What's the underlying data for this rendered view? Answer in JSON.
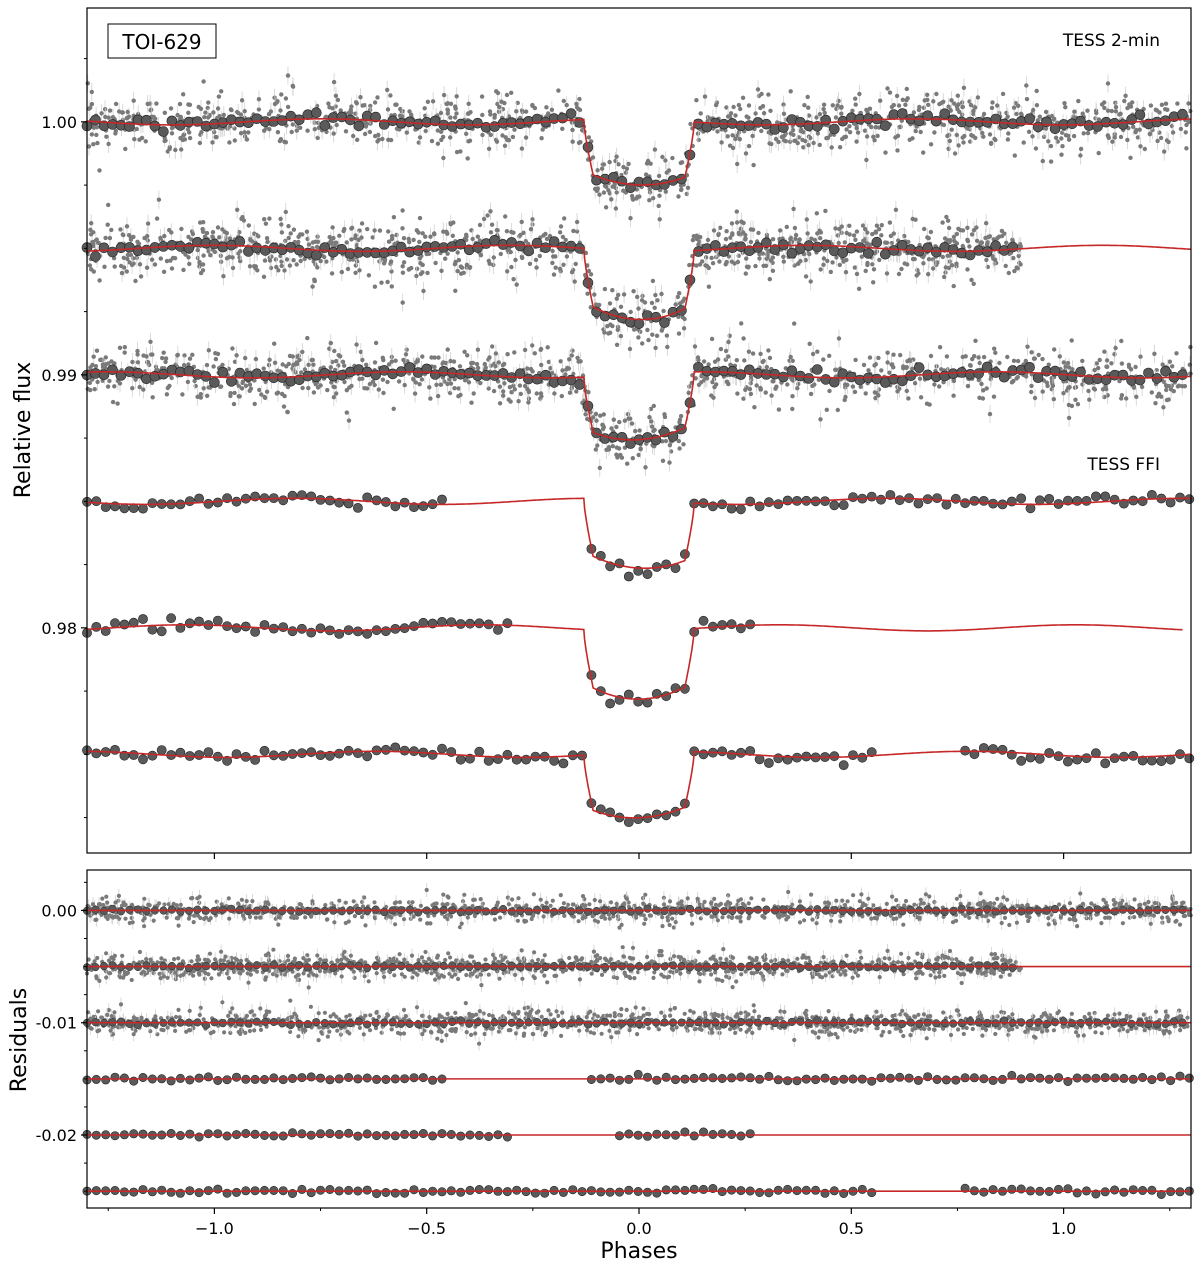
{
  "chart_data": [
    {
      "type": "scatter",
      "panel": "transit",
      "title_box": "TOI-629",
      "ylabel": "Relative flux",
      "xlabel": "",
      "xlim": [
        -1.3,
        1.3
      ],
      "ylim": [
        0.9711,
        1.0045
      ],
      "yticks": [
        0.98,
        0.99,
        1.0
      ],
      "ytick_labels": [
        "0.98",
        "0.99",
        "1.00"
      ],
      "xticks": [
        -1.0,
        -0.5,
        0.0,
        0.5,
        1.0
      ],
      "annotations": [
        "TESS 2-min",
        "TESS FFI"
      ],
      "transit": {
        "center_phase": 0.0,
        "half_width_phase": 0.13
      },
      "series": [
        {
          "group": "TESS 2-min",
          "baseline": 1.0,
          "depth": 0.0026,
          "phase_range": [
            -1.3,
            1.3
          ],
          "model_range": [
            -1.3,
            1.3
          ]
        },
        {
          "group": "TESS 2-min",
          "baseline": 0.995,
          "depth": 0.0027,
          "phase_range": [
            -1.3,
            0.9
          ],
          "model_range": [
            -1.3,
            1.3
          ]
        },
        {
          "group": "TESS 2-min",
          "baseline": 0.99,
          "depth": 0.0026,
          "phase_range": [
            -1.3,
            1.3
          ],
          "model_range": [
            -1.3,
            1.3
          ]
        },
        {
          "group": "TESS FFI",
          "baseline": 0.985,
          "depth": 0.0027,
          "phase_range": [
            -1.3,
            1.3
          ],
          "gaps": [
            [
              -0.45,
              -0.13
            ]
          ],
          "model_range": [
            -1.3,
            1.3
          ]
        },
        {
          "group": "TESS FFI",
          "baseline": 0.98,
          "depth": 0.0027,
          "phase_range": [
            -1.3,
            0.28
          ],
          "gaps": [
            [
              -0.3,
              -0.13
            ]
          ],
          "model_range": [
            -1.3,
            1.28
          ]
        },
        {
          "group": "TESS FFI",
          "baseline": 0.975,
          "depth": 0.0026,
          "phase_range": [
            -1.3,
            1.3
          ],
          "gaps": [
            [
              0.12,
              0.12
            ],
            [
              0.57,
              0.75
            ]
          ],
          "model_range": [
            -1.3,
            1.3
          ]
        }
      ]
    },
    {
      "type": "scatter",
      "panel": "residuals",
      "ylabel": "Residuals",
      "xlabel": "Phases",
      "xlim": [
        -1.3,
        1.3
      ],
      "ylim": [
        -0.0265,
        0.0036
      ],
      "yticks": [
        -0.02,
        -0.01,
        0.0
      ],
      "ytick_labels": [
        "-0.02",
        "-0.01",
        "0.00"
      ],
      "xticks": [
        -1.0,
        -0.5,
        0.0,
        0.5,
        1.0
      ],
      "xtick_labels": [
        "−1.0",
        "−0.5",
        "0.0",
        "0.5",
        "1.0"
      ],
      "series": [
        {
          "offset": 0.0,
          "phase_range": [
            -1.3,
            1.3
          ]
        },
        {
          "offset": -0.005,
          "phase_range": [
            -1.3,
            0.9
          ]
        },
        {
          "offset": -0.01,
          "phase_range": [
            -1.3,
            1.3
          ]
        },
        {
          "offset": -0.015,
          "phase_range": [
            -1.3,
            1.3
          ],
          "gaps": [
            [
              -0.45,
              -0.13
            ]
          ]
        },
        {
          "offset": -0.02,
          "phase_range": [
            -1.3,
            0.28
          ],
          "gaps": [
            [
              -0.3,
              -0.05
            ]
          ]
        },
        {
          "offset": -0.025,
          "phase_range": [
            -1.3,
            1.3
          ],
          "gaps": [
            [
              0.57,
              0.75
            ]
          ]
        }
      ]
    }
  ],
  "colors": {
    "model": "#c62828",
    "points_small": "#7a7a7a",
    "points_binned": "#5a5a5a",
    "errorbar": "#d0d0d0",
    "axes": "#000000"
  }
}
